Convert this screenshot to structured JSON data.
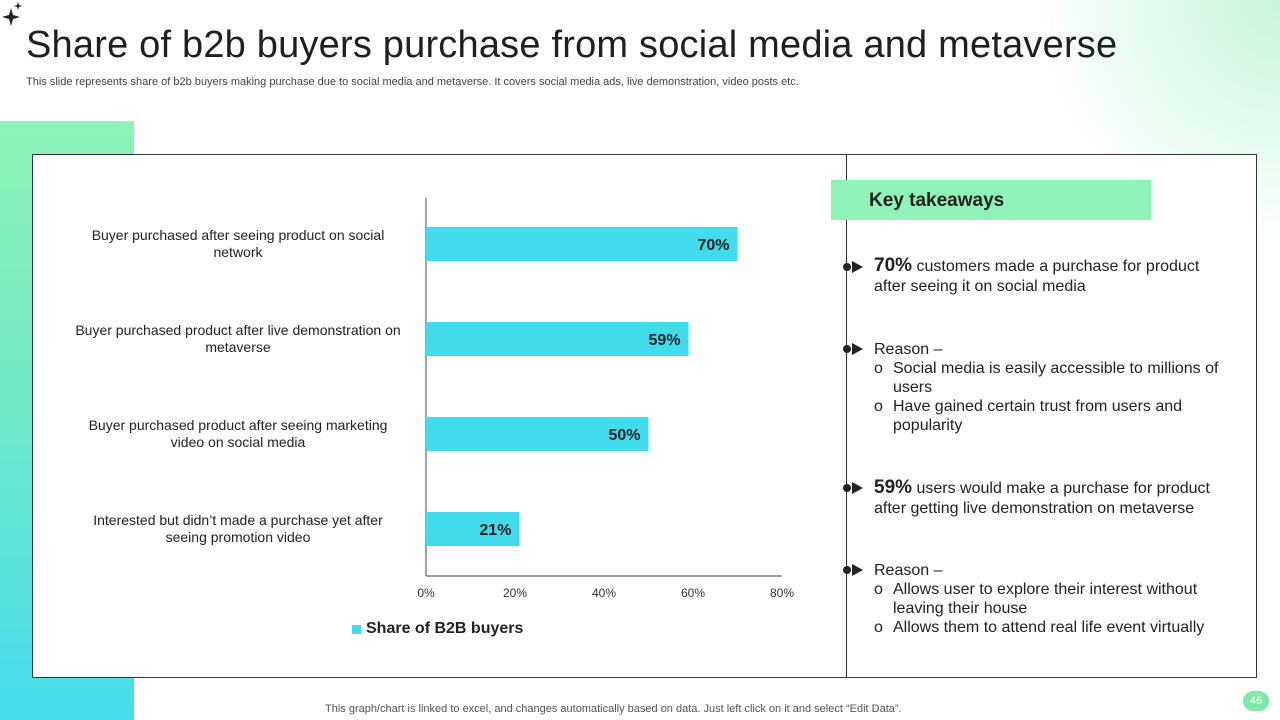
{
  "slide": {
    "title": "Share of b2b buyers purchase from social media and metaverse",
    "subtitle": "This slide represents share of b2b buyers making purchase due to social media and metaverse. It covers social media ads, live demonstration, video posts etc.",
    "footer": "This graph/chart is linked to excel,  and changes automatically based on data. Just left click on it and select “Edit Data”.",
    "page_number": "46",
    "colors": {
      "accent_green": "#8ff2b6",
      "bar_cyan": "#42dbed",
      "strip_bottom": "#45dcec"
    }
  },
  "chart_data": {
    "type": "bar",
    "orientation": "horizontal",
    "categories": [
      "Buyer purchased after seeing product on social network",
      "Buyer purchased product after live demonstration on metaverse",
      "Buyer purchased product after seeing marketing video on social media",
      "Interested but didn’t made a purchase yet after seeing promotion video"
    ],
    "category_lines": [
      [
        "Buyer purchased after seeing product on social",
        "network"
      ],
      [
        "Buyer purchased product after live demonstration on",
        "metaverse"
      ],
      [
        "Buyer purchased product after seeing marketing",
        "video on social media"
      ],
      [
        "Interested but didn’t made a purchase yet after",
        "seeing promotion video"
      ]
    ],
    "series": [
      {
        "name": "Share of B2B buyers",
        "values": [
          70,
          59,
          50,
          21
        ],
        "color": "#42dbed"
      }
    ],
    "data_labels": [
      "70%",
      "59%",
      "50%",
      "21%"
    ],
    "xlim": [
      0,
      80
    ],
    "x_ticks": [
      0,
      20,
      40,
      60,
      80
    ],
    "x_tick_labels": [
      "0%",
      "20%",
      "40%",
      "60%",
      "80%"
    ],
    "grid": false,
    "legend_position": "bottom"
  },
  "takeaways": {
    "header": "Key takeaways",
    "point1": {
      "highlight": "70%",
      "text": " customers made a purchase for product after seeing it on social media"
    },
    "reason1": {
      "label": "Reason –",
      "items": [
        "Social media is easily accessible to millions of users",
        "Have gained certain trust from users and popularity"
      ]
    },
    "point2": {
      "highlight": "59%",
      "text": " users would make a purchase for product after getting live demonstration on metaverse"
    },
    "reason2": {
      "label": "Reason –",
      "items": [
        "Allows user to explore their interest without leaving their house",
        "Allows them to attend real life event virtually"
      ]
    },
    "sub_marker": "o"
  }
}
